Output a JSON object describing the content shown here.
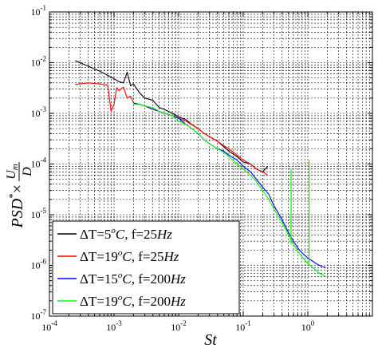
{
  "chart_data": {
    "type": "line",
    "title": "",
    "xlabel": "St",
    "ylabel_parts": {
      "main": "PSD",
      "sup": "*",
      "times": "×",
      "num": "U",
      "num_sub": "m",
      "den": "D"
    },
    "xscale": "log",
    "yscale": "log",
    "xlim": [
      0.0001,
      10
    ],
    "ylim": [
      1e-07,
      0.1
    ],
    "grid": true,
    "legend_position": "bottom-left",
    "x_ticks": [
      {
        "value": 0.0001,
        "base": "10",
        "exp": "-4"
      },
      {
        "value": 0.001,
        "base": "10",
        "exp": "-3"
      },
      {
        "value": 0.01,
        "base": "10",
        "exp": "-2"
      },
      {
        "value": 0.1,
        "base": "10",
        "exp": "-1"
      },
      {
        "value": 1,
        "base": "10",
        "exp": "0"
      }
    ],
    "y_ticks": [
      {
        "value": 1e-07,
        "base": "10",
        "exp": "-7"
      },
      {
        "value": 1e-06,
        "base": "10",
        "exp": "-6"
      },
      {
        "value": 1e-05,
        "base": "10",
        "exp": "-5"
      },
      {
        "value": 0.0001,
        "base": "10",
        "exp": "-4"
      },
      {
        "value": 0.001,
        "base": "10",
        "exp": "-3"
      },
      {
        "value": 0.01,
        "base": "10",
        "exp": "-2"
      },
      {
        "value": 0.1,
        "base": "10",
        "exp": "-1"
      }
    ],
    "series": [
      {
        "name": "ΔT=5°C, f=25Hz",
        "legend": {
          "delta": "ΔT",
          "eq": "=",
          "num": "5",
          "sup": "o",
          "unit": "C",
          "freq_prefix": ", f=",
          "freq": "25",
          "freq_unit": "Hz"
        },
        "color": "#000000",
        "x": [
          0.00025,
          0.0004,
          0.0006,
          0.0008,
          0.001,
          0.0012,
          0.0014,
          0.0016,
          0.0018,
          0.002,
          0.0025,
          0.003,
          0.0035,
          0.004,
          0.005,
          0.006,
          0.008,
          0.01,
          0.013,
          0.016,
          0.02,
          0.025,
          0.03,
          0.04,
          0.05,
          0.06,
          0.08,
          0.1,
          0.13,
          0.16,
          0.2,
          0.24
        ],
        "y": [
          0.011,
          0.0085,
          0.0068,
          0.0056,
          0.0048,
          0.0042,
          0.004,
          0.0065,
          0.0035,
          0.0038,
          0.0025,
          0.002,
          0.0019,
          0.0018,
          0.0013,
          0.0012,
          0.001,
          0.00085,
          0.00075,
          0.0006,
          0.0005,
          0.0004,
          0.00035,
          0.00028,
          0.00022,
          0.00018,
          0.00014,
          0.00011,
          0.0001,
          8e-05,
          7e-05,
          9e-05
        ]
      },
      {
        "name": "ΔT=19°C, f=25Hz",
        "legend": {
          "delta": "ΔT",
          "eq": "=",
          "num": "19",
          "sup": "o",
          "unit": "C",
          "freq_prefix": ", f=",
          "freq": "25",
          "freq_unit": "Hz"
        },
        "color": "#ff0000",
        "x": [
          0.00025,
          0.0004,
          0.0006,
          0.0008,
          0.0009,
          0.001,
          0.0011,
          0.0012,
          0.0014,
          0.0016,
          0.0018,
          0.002,
          0.0025,
          0.003,
          0.004,
          0.005,
          0.006,
          0.008,
          0.01,
          0.013,
          0.016,
          0.02,
          0.025,
          0.03,
          0.04,
          0.05,
          0.06,
          0.08,
          0.1,
          0.13,
          0.16,
          0.2,
          0.24
        ],
        "y": [
          0.0037,
          0.004,
          0.0038,
          0.0036,
          0.0011,
          0.0015,
          0.0032,
          0.0028,
          0.0033,
          0.002,
          0.0022,
          0.0016,
          0.0015,
          0.0014,
          0.0012,
          0.0011,
          0.001,
          0.0009,
          0.0008,
          0.0007,
          0.0006,
          0.0005,
          0.0004,
          0.00035,
          0.00028,
          0.00023,
          0.0002,
          0.00015,
          0.00012,
          0.0001,
          8e-05,
          7e-05,
          6e-05
        ]
      },
      {
        "name": "ΔT=15°C, f=200Hz",
        "legend": {
          "delta": "ΔT",
          "eq": "=",
          "num": "15",
          "sup": "o",
          "unit": "C",
          "freq_prefix": ", f=",
          "freq": "200",
          "freq_unit": "Hz"
        },
        "color": "#0000ff",
        "x": [
          0.002,
          0.0025,
          0.003,
          0.004,
          0.005,
          0.006,
          0.008,
          0.01,
          0.013,
          0.016,
          0.02,
          0.025,
          0.03,
          0.04,
          0.05,
          0.06,
          0.08,
          0.1,
          0.13,
          0.16,
          0.2,
          0.25,
          0.3,
          0.4,
          0.5,
          0.6,
          0.7,
          0.8,
          1.0,
          1.2,
          1.5,
          1.9
        ],
        "y": [
          0.0016,
          0.0015,
          0.0014,
          0.0012,
          0.0011,
          0.001,
          0.0009,
          0.0008,
          0.0006,
          0.0005,
          0.0004,
          0.0003,
          0.00025,
          0.0002,
          0.00018,
          0.00015,
          0.00012,
          9e-05,
          7e-05,
          5e-05,
          3.5e-05,
          2.5e-05,
          1.5e-05,
          8e-06,
          4.5e-06,
          3e-06,
          2.2e-06,
          1.8e-06,
          1.4e-06,
          1.2e-06,
          1e-06,
          9e-07
        ]
      },
      {
        "name": "ΔT=19°C, f=200Hz",
        "legend": {
          "delta": "ΔT",
          "eq": "=",
          "num": "19",
          "sup": "o",
          "unit": "C",
          "freq_prefix": ", f=",
          "freq": "200",
          "freq_unit": "Hz"
        },
        "color": "#00ff00",
        "x": [
          0.002,
          0.0025,
          0.003,
          0.004,
          0.005,
          0.006,
          0.008,
          0.01,
          0.013,
          0.016,
          0.02,
          0.025,
          0.03,
          0.04,
          0.05,
          0.06,
          0.08,
          0.1,
          0.13,
          0.16,
          0.2,
          0.25,
          0.3,
          0.4,
          0.5,
          0.6,
          0.7,
          0.8,
          1.0,
          1.2,
          1.5,
          1.9
        ],
        "y": [
          0.0015,
          0.0015,
          0.0014,
          0.0013,
          0.0011,
          0.001,
          0.0009,
          0.0007,
          0.0006,
          0.0005,
          0.0004,
          0.0003,
          0.00025,
          0.0002,
          0.00017,
          0.00014,
          0.0001,
          8e-05,
          6e-05,
          4.5e-05,
          3e-05,
          2e-05,
          1.3e-05,
          7e-06,
          4e-06,
          2.6e-06,
          1.9e-06,
          1.5e-06,
          1.1e-06,
          9e-07,
          7e-07,
          6e-07
        ]
      }
    ],
    "spikes": [
      {
        "series": 3,
        "x": 0.55,
        "y_from": 2.6e-06,
        "y_to": 8e-05
      },
      {
        "series": 3,
        "x": 1.05,
        "y_from": 1.1e-06,
        "y_to": 0.00012
      }
    ]
  }
}
